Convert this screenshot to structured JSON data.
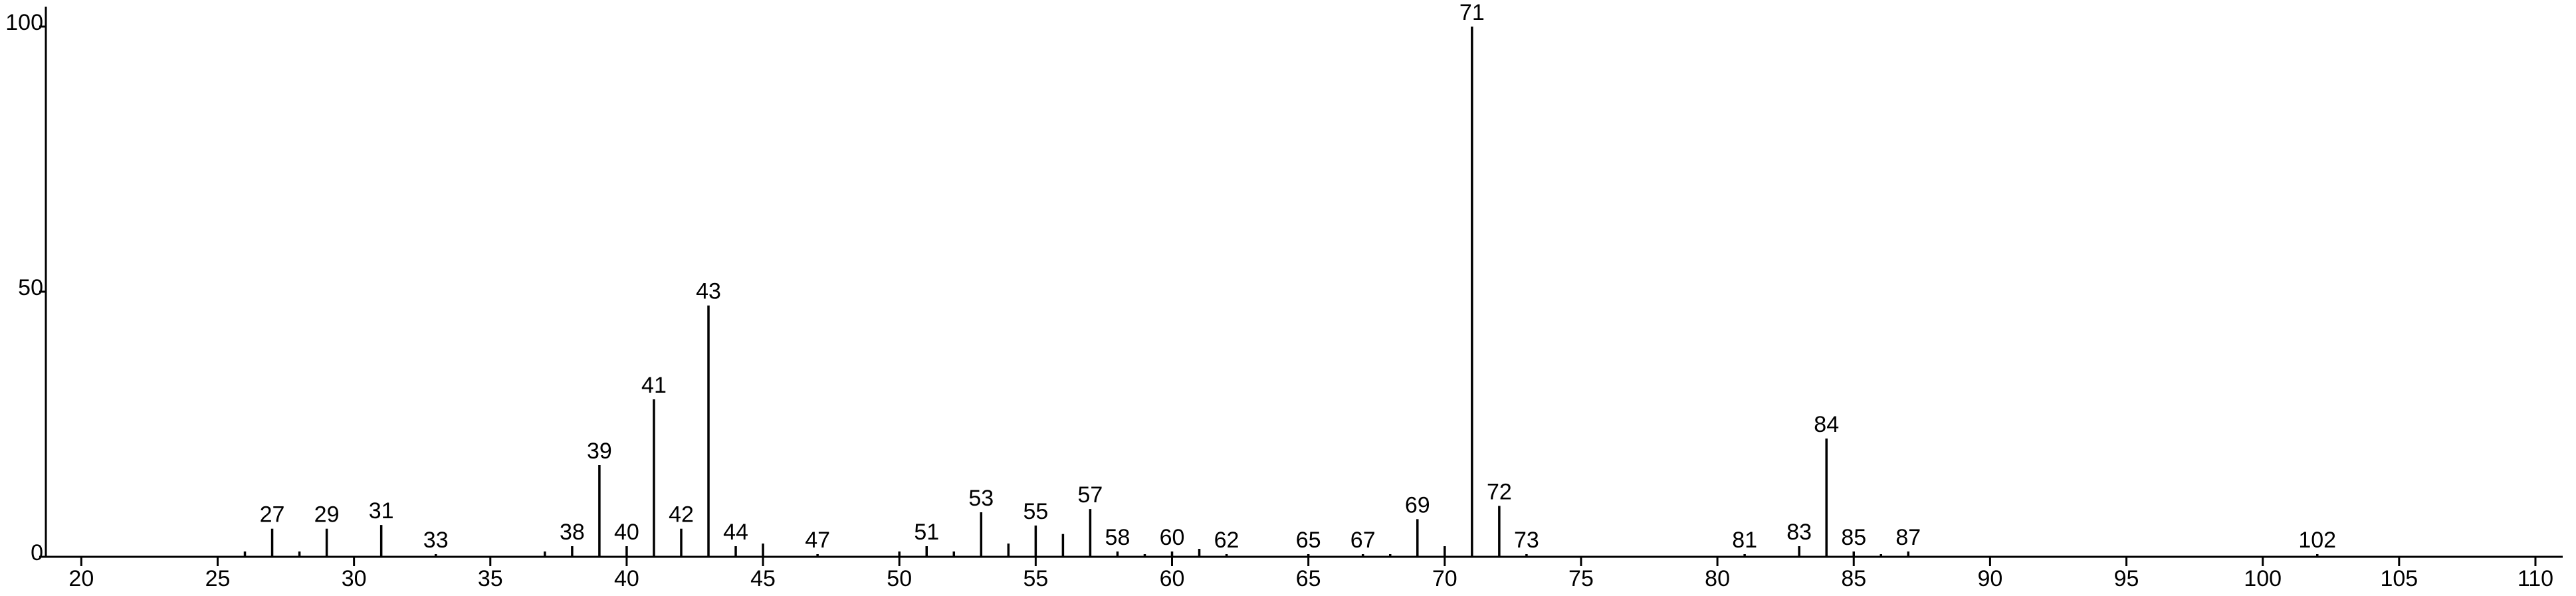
{
  "chart_data": {
    "type": "stem",
    "x": [
      26,
      27,
      28,
      29,
      31,
      33,
      37,
      38,
      39,
      40,
      41,
      42,
      43,
      44,
      45,
      47,
      50,
      51,
      52,
      53,
      54,
      55,
      56,
      57,
      58,
      59,
      60,
      61,
      62,
      65,
      67,
      68,
      69,
      70,
      71,
      72,
      73,
      81,
      83,
      84,
      85,
      86,
      87,
      102
    ],
    "values": [
      1,
      5.3,
      1,
      5.3,
      6,
      0.5,
      1,
      2,
      17.3,
      2,
      29.7,
      5.3,
      47.4,
      2,
      2.5,
      0.5,
      1,
      2,
      1,
      8.4,
      2.5,
      5.9,
      4.3,
      9,
      1,
      0.5,
      1,
      1.5,
      0.5,
      0.5,
      0.5,
      0.5,
      7.1,
      2,
      100,
      9.6,
      0.5,
      0.5,
      2,
      22.3,
      1,
      0.5,
      1,
      0.5
    ],
    "labeled": [
      false,
      true,
      false,
      true,
      true,
      true,
      false,
      true,
      true,
      true,
      true,
      true,
      true,
      true,
      false,
      true,
      false,
      true,
      false,
      true,
      false,
      true,
      false,
      true,
      true,
      false,
      true,
      false,
      true,
      true,
      true,
      false,
      true,
      false,
      true,
      true,
      true,
      true,
      true,
      true,
      true,
      false,
      true,
      true
    ],
    "color": "#000000",
    "xlim": [
      18.7,
      111
    ],
    "xticks": [
      20,
      25,
      30,
      35,
      40,
      45,
      50,
      55,
      60,
      65,
      70,
      75,
      80,
      85,
      90,
      95,
      100,
      105,
      110
    ],
    "ylim": [
      0,
      100
    ],
    "yticks": [
      0,
      50,
      100
    ]
  }
}
